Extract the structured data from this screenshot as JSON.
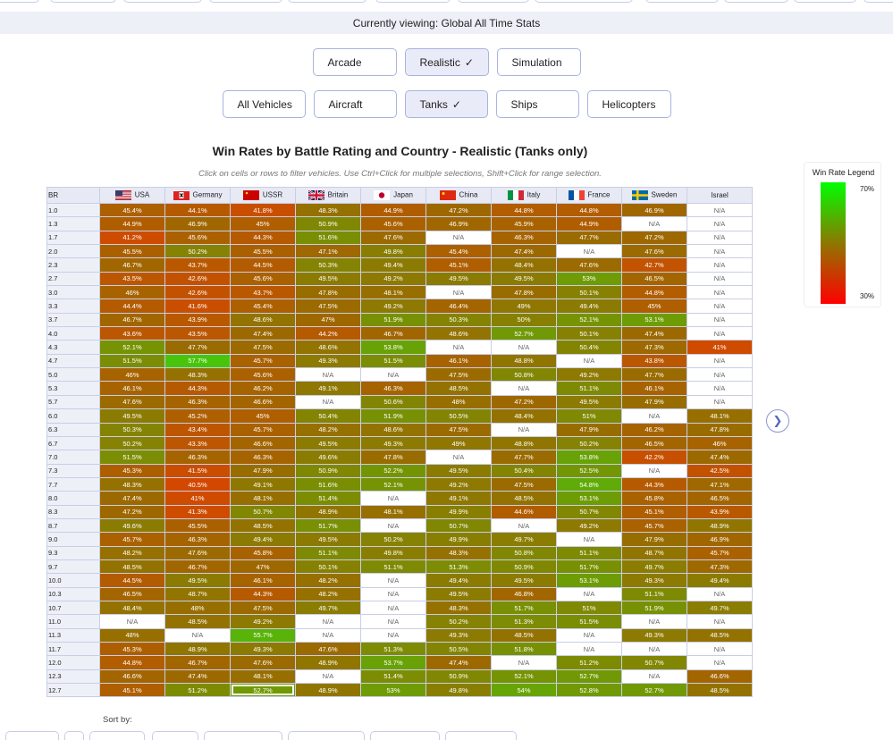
{
  "current_view": "Currently viewing: Global All Time Stats",
  "modes": [
    {
      "label": "Arcade",
      "active": false
    },
    {
      "label": "Realistic",
      "active": true
    },
    {
      "label": "Simulation",
      "active": false
    }
  ],
  "categories": [
    {
      "label": "All Vehicles",
      "active": false
    },
    {
      "label": "Aircraft",
      "active": false
    },
    {
      "label": "Tanks",
      "active": true
    },
    {
      "label": "Ships",
      "active": false
    },
    {
      "label": "Helicopters",
      "active": false
    }
  ],
  "check_glyph": "✓",
  "title": "Win Rates by Battle Rating and Country - Realistic (Tanks only)",
  "subtitle": "Click on cells or rows to filter vehicles. Use Ctrl+Click for multiple selections, Shift+Click for range selection.",
  "legend": {
    "title": "Win Rate Legend",
    "max_label": "70%",
    "min_label": "30%",
    "max": 70,
    "min": 30,
    "colors": {
      "high": "#00ff00",
      "mid": "#9b6a00",
      "low": "#ff0000"
    }
  },
  "sort_by_label": "Sort by:",
  "next_icon": "chevron-right-icon",
  "chart_data": {
    "type": "heatmap",
    "row_header": "BR",
    "columns": [
      "USA",
      "Germany",
      "USSR",
      "Britain",
      "Japan",
      "China",
      "Italy",
      "France",
      "Sweden",
      "Israel"
    ],
    "rows": [
      {
        "br": "1.0",
        "values": [
          "45.4%",
          "44.1%",
          "41.8%",
          "48.3%",
          "44.9%",
          "47.2%",
          "44.8%",
          "44.8%",
          "46.9%",
          "N/A"
        ]
      },
      {
        "br": "1.3",
        "values": [
          "44.9%",
          "46.9%",
          "45%",
          "50.9%",
          "45.6%",
          "46.9%",
          "45.9%",
          "44.9%",
          "N/A",
          "N/A"
        ]
      },
      {
        "br": "1.7",
        "values": [
          "41.2%",
          "45.6%",
          "44.3%",
          "51.6%",
          "47.6%",
          "N/A",
          "46.3%",
          "47.7%",
          "47.2%",
          "N/A"
        ]
      },
      {
        "br": "2.0",
        "values": [
          "45.5%",
          "50.2%",
          "45.5%",
          "47.1%",
          "49.8%",
          "45.4%",
          "47.4%",
          "N/A",
          "47.6%",
          "N/A"
        ]
      },
      {
        "br": "2.3",
        "values": [
          "46.7%",
          "43.7%",
          "44.5%",
          "50.3%",
          "49.4%",
          "45.1%",
          "48.4%",
          "47.6%",
          "42.7%",
          "N/A"
        ]
      },
      {
        "br": "2.7",
        "values": [
          "43.5%",
          "42.6%",
          "45.6%",
          "49.5%",
          "49.2%",
          "49.5%",
          "49.5%",
          "53%",
          "46.5%",
          "N/A"
        ]
      },
      {
        "br": "3.0",
        "values": [
          "46%",
          "42.6%",
          "43.7%",
          "47.8%",
          "48.1%",
          "N/A",
          "47.8%",
          "50.1%",
          "44.8%",
          "N/A"
        ]
      },
      {
        "br": "3.3",
        "values": [
          "44.4%",
          "41.6%",
          "45.4%",
          "47.5%",
          "49.2%",
          "46.4%",
          "49%",
          "49.4%",
          "45%",
          "N/A"
        ]
      },
      {
        "br": "3.7",
        "values": [
          "46.7%",
          "43.9%",
          "48.6%",
          "47%",
          "51.9%",
          "50.3%",
          "50%",
          "52.1%",
          "53.1%",
          "N/A"
        ]
      },
      {
        "br": "4.0",
        "values": [
          "43.6%",
          "43.5%",
          "47.4%",
          "44.2%",
          "46.7%",
          "48.6%",
          "52.7%",
          "50.1%",
          "47.4%",
          "N/A"
        ]
      },
      {
        "br": "4.3",
        "values": [
          "52.1%",
          "47.7%",
          "47.5%",
          "48.6%",
          "53.8%",
          "N/A",
          "N/A",
          "50.4%",
          "47.3%",
          "41%"
        ]
      },
      {
        "br": "4.7",
        "values": [
          "51.5%",
          "57.7%",
          "45.7%",
          "49.3%",
          "51.5%",
          "46.1%",
          "48.8%",
          "N/A",
          "43.8%",
          "N/A"
        ]
      },
      {
        "br": "5.0",
        "values": [
          "46%",
          "48.3%",
          "45.6%",
          "N/A",
          "N/A",
          "47.5%",
          "50.8%",
          "49.2%",
          "47.7%",
          "N/A"
        ]
      },
      {
        "br": "5.3",
        "values": [
          "46.1%",
          "44.3%",
          "46.2%",
          "49.1%",
          "46.3%",
          "48.5%",
          "N/A",
          "51.1%",
          "46.1%",
          "N/A"
        ]
      },
      {
        "br": "5.7",
        "values": [
          "47.6%",
          "46.3%",
          "46.6%",
          "N/A",
          "50.6%",
          "48%",
          "47.2%",
          "49.5%",
          "47.9%",
          "N/A"
        ]
      },
      {
        "br": "6.0",
        "values": [
          "49.5%",
          "45.2%",
          "45%",
          "50.4%",
          "51.9%",
          "50.5%",
          "48.4%",
          "51%",
          "N/A",
          "48.1%"
        ]
      },
      {
        "br": "6.3",
        "values": [
          "50.3%",
          "43.4%",
          "45.7%",
          "48.2%",
          "48.6%",
          "47.5%",
          "N/A",
          "47.9%",
          "46.2%",
          "47.8%"
        ]
      },
      {
        "br": "6.7",
        "values": [
          "50.2%",
          "43.3%",
          "46.6%",
          "49.5%",
          "49.3%",
          "49%",
          "48.8%",
          "50.2%",
          "46.5%",
          "46%"
        ]
      },
      {
        "br": "7.0",
        "values": [
          "51.5%",
          "46.3%",
          "46.3%",
          "49.6%",
          "47.8%",
          "N/A",
          "47.7%",
          "53.8%",
          "42.2%",
          "47.4%"
        ]
      },
      {
        "br": "7.3",
        "values": [
          "45.3%",
          "41.5%",
          "47.9%",
          "50.9%",
          "52.2%",
          "49.5%",
          "50.4%",
          "52.5%",
          "N/A",
          "42.5%"
        ]
      },
      {
        "br": "7.7",
        "values": [
          "48.3%",
          "40.5%",
          "49.1%",
          "51.6%",
          "52.1%",
          "49.2%",
          "47.5%",
          "54.8%",
          "44.3%",
          "47.1%"
        ]
      },
      {
        "br": "8.0",
        "values": [
          "47.4%",
          "41%",
          "48.1%",
          "51.4%",
          "N/A",
          "49.1%",
          "48.5%",
          "53.1%",
          "45.8%",
          "46.5%"
        ]
      },
      {
        "br": "8.3",
        "values": [
          "47.2%",
          "41.3%",
          "50.7%",
          "48.9%",
          "48.1%",
          "49.9%",
          "44.6%",
          "50.7%",
          "45.1%",
          "43.9%"
        ]
      },
      {
        "br": "8.7",
        "values": [
          "49.6%",
          "45.5%",
          "48.5%",
          "51.7%",
          "N/A",
          "50.7%",
          "N/A",
          "49.2%",
          "45.7%",
          "48.9%"
        ]
      },
      {
        "br": "9.0",
        "values": [
          "45.7%",
          "46.3%",
          "49.4%",
          "49.5%",
          "50.2%",
          "49.9%",
          "49.7%",
          "N/A",
          "47.9%",
          "46.9%"
        ]
      },
      {
        "br": "9.3",
        "values": [
          "48.2%",
          "47.6%",
          "45.8%",
          "51.1%",
          "49.8%",
          "48.3%",
          "50.8%",
          "51.1%",
          "48.7%",
          "45.7%"
        ]
      },
      {
        "br": "9.7",
        "values": [
          "48.5%",
          "46.7%",
          "47%",
          "50.1%",
          "51.1%",
          "51.3%",
          "50.9%",
          "51.7%",
          "49.7%",
          "47.3%"
        ]
      },
      {
        "br": "10.0",
        "values": [
          "44.5%",
          "49.5%",
          "46.1%",
          "48.2%",
          "N/A",
          "49.4%",
          "49.5%",
          "53.1%",
          "49.3%",
          "49.4%"
        ]
      },
      {
        "br": "10.3",
        "values": [
          "46.5%",
          "48.7%",
          "44.3%",
          "48.2%",
          "N/A",
          "49.5%",
          "46.8%",
          "N/A",
          "51.1%",
          "N/A"
        ]
      },
      {
        "br": "10.7",
        "values": [
          "48.4%",
          "48%",
          "47.5%",
          "49.7%",
          "N/A",
          "48.3%",
          "51.7%",
          "51%",
          "51.9%",
          "49.7%"
        ]
      },
      {
        "br": "11.0",
        "values": [
          "N/A",
          "48.5%",
          "49.2%",
          "N/A",
          "N/A",
          "50.2%",
          "51.3%",
          "51.5%",
          "N/A",
          "N/A"
        ]
      },
      {
        "br": "11.3",
        "values": [
          "48%",
          "N/A",
          "55.7%",
          "N/A",
          "N/A",
          "49.3%",
          "48.5%",
          "N/A",
          "49.3%",
          "48.5%"
        ]
      },
      {
        "br": "11.7",
        "values": [
          "45.3%",
          "48.9%",
          "49.3%",
          "47.6%",
          "51.3%",
          "50.5%",
          "51.8%",
          "N/A",
          "N/A",
          "N/A"
        ]
      },
      {
        "br": "12.0",
        "values": [
          "44.8%",
          "46.7%",
          "47.6%",
          "48.9%",
          "53.7%",
          "47.4%",
          "N/A",
          "51.2%",
          "50.7%",
          "N/A"
        ]
      },
      {
        "br": "12.3",
        "values": [
          "46.6%",
          "47.4%",
          "48.1%",
          "N/A",
          "51.4%",
          "50.9%",
          "52.1%",
          "52.7%",
          "N/A",
          "46.6%"
        ]
      },
      {
        "br": "12.7",
        "values": [
          "45.1%",
          "51.2%",
          "52.7%",
          "48.9%",
          "53%",
          "49.8%",
          "54%",
          "52.8%",
          "52.7%",
          "48.5%"
        ]
      }
    ]
  }
}
